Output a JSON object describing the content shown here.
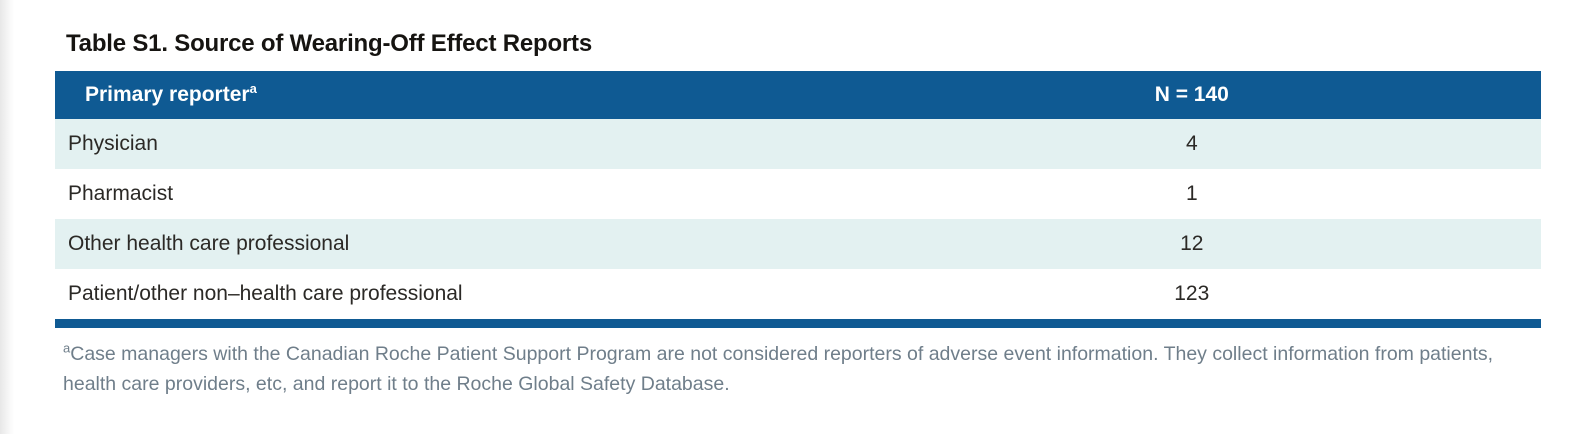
{
  "title": {
    "prefix": "Table S1.",
    "text": "Source of Wearing-Off Effect Reports"
  },
  "table": {
    "header": {
      "col1": "Primary reporter",
      "col1_superscript": "a",
      "col2": "N = 140"
    },
    "rows": [
      {
        "label": "Physician",
        "value": "4"
      },
      {
        "label": "Pharmacist",
        "value": "1"
      },
      {
        "label": "Other health care professional",
        "value": "12"
      },
      {
        "label": "Patient/other non–health care professional",
        "value": "123"
      }
    ],
    "colors": {
      "header_bg": "#0f5a93",
      "alt_row_bg": "#e3f1f1",
      "row_bg": "#ffffff",
      "bottom_bar": "#0f5a93"
    }
  },
  "footnote": {
    "superscript": "a",
    "text": "Case managers with the Canadian Roche Patient Support Program are not considered reporters of adverse event information. They collect information from patients, health care providers, etc, and report it to the Roche Global Safety Database."
  }
}
